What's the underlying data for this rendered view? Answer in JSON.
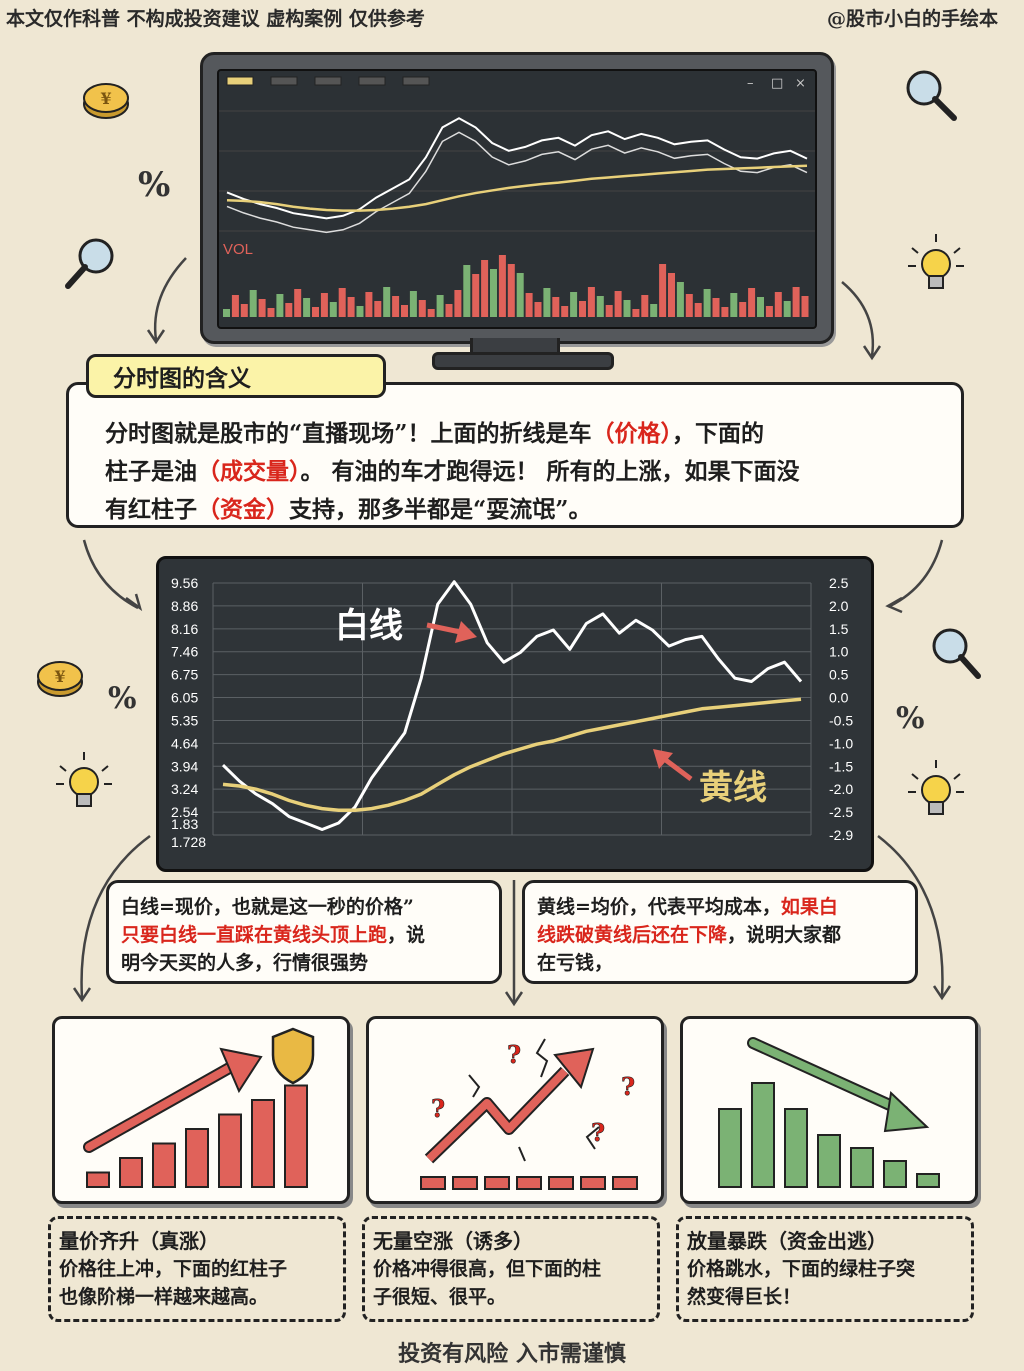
{
  "header": {
    "disclaimer": "本文仅作科普 不构成投资建议  虚构案例 仅供参考",
    "author": "@股市小白的手绘本"
  },
  "monitor": {
    "vol_label": "VOL"
  },
  "intro": {
    "title": "分时图的含义",
    "p1": "分时图就是股市的“直播现场”！上面的折线是车",
    "k1": "（价格）",
    "p2": "，下面的",
    "p3": "柱子是油",
    "k2": "（成交量）",
    "p4": "。 有油的车才跑得远！ 所有的上涨，如果下面没",
    "p5": "有红柱子",
    "k3": "（资金）",
    "p6": "支持，那多半都是“耍流氓”。"
  },
  "chart_data": {
    "type": "line",
    "left_ticks": [
      "9.56",
      "8.86",
      "8.16",
      "7.46",
      "6.75",
      "6.05",
      "5.35",
      "4.64",
      "3.94",
      "3.24",
      "2.54",
      "1.83",
      "1.728"
    ],
    "right_ticks": [
      "2.5",
      "2.0",
      "1.5",
      "1.0",
      "0.5",
      "0.0",
      "-0.5",
      "-1.0",
      "-1.5",
      "-2.0",
      "-2.5",
      "-2.9"
    ],
    "label_white": "白线",
    "label_yellow": "黄线",
    "series": [
      {
        "color": "#ffffff",
        "values": [
          3.9,
          3.4,
          3.0,
          2.7,
          2.3,
          2.1,
          1.9,
          2.1,
          2.6,
          3.5,
          4.2,
          4.9,
          6.6,
          8.9,
          9.6,
          8.9,
          7.7,
          7.1,
          7.4,
          7.9,
          8.1,
          7.5,
          8.3,
          8.6,
          8.0,
          8.4,
          8.1,
          7.6,
          7.8,
          7.9,
          7.2,
          6.6,
          6.5,
          6.9,
          7.1,
          6.5
        ]
      },
      {
        "color": "#e8d07a",
        "values": [
          3.3,
          3.25,
          3.15,
          3.0,
          2.8,
          2.65,
          2.55,
          2.5,
          2.5,
          2.55,
          2.65,
          2.8,
          3.0,
          3.3,
          3.6,
          3.85,
          4.05,
          4.25,
          4.4,
          4.55,
          4.65,
          4.8,
          4.95,
          5.05,
          5.15,
          5.25,
          5.35,
          5.45,
          5.55,
          5.65,
          5.7,
          5.75,
          5.8,
          5.85,
          5.9,
          5.95
        ]
      }
    ],
    "ylim": [
      1.728,
      9.56
    ]
  },
  "bubbles": {
    "left_a": "白线=现价，也就是这一秒的价格”",
    "left_b": "只要白线一直踩在黄线头顶上跑",
    "left_c": "，说",
    "left_d": "明今天买的人多，行情很强势",
    "right_a": "黄线=均价，代表平均成本，",
    "right_b": "如果白",
    "right_c": "线跌破黄线后还在下降",
    "right_d": "，说明大家都",
    "right_e": "在亏钱，"
  },
  "cases": [
    {
      "title": "量价齐升（真涨）",
      "l1": "价格往上冲，下面的红柱子",
      "l2": "也像阶梯一样越来越高。",
      "bars": [
        1,
        2,
        3,
        4,
        5,
        6,
        7
      ]
    },
    {
      "title": "无量空涨（诱多）",
      "l1": "价格冲得很高，但下面的柱",
      "l2": "子很短、很平。",
      "bars": [
        1,
        1,
        1,
        1,
        1,
        1,
        1
      ]
    },
    {
      "title": "放量暴跌（资金出逃）",
      "l1": "价格跳水，下面的绿柱子突",
      "l2": "然变得巨长！",
      "bars": [
        6,
        8,
        6,
        4,
        3,
        2,
        1
      ]
    }
  ],
  "footer": {
    "text": "投资有风险 入市需谨慎"
  },
  "colors": {
    "red": "#d9261c",
    "bar_red": "#e0625a",
    "bar_green": "#7bb274",
    "yellow_line": "#e8d07a",
    "highlight": "#fbf3a8"
  },
  "icons": [
    "coin-icon",
    "percent-icon",
    "magnifier-icon",
    "lightbulb-icon",
    "shield-icon",
    "question-icon",
    "crack-icon"
  ]
}
